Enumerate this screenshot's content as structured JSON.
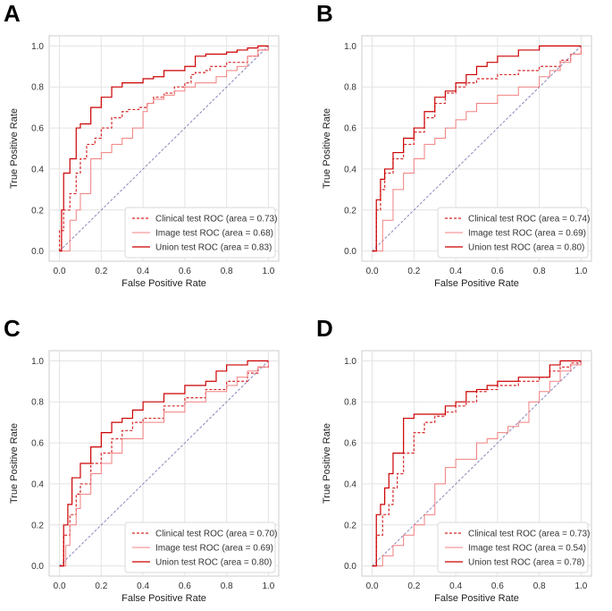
{
  "chart_data": [
    {
      "panel": "A",
      "type": "line",
      "xlabel": "False Positive Rate",
      "ylabel": "True Positive Rate",
      "xlim": [
        0,
        1
      ],
      "ylim": [
        0,
        1
      ],
      "xticks": [
        "0.0",
        "0.2",
        "0.4",
        "0.6",
        "0.8",
        "1.0"
      ],
      "yticks": [
        "0.0",
        "0.2",
        "0.4",
        "0.6",
        "0.8",
        "1.0"
      ],
      "grid": true,
      "legend_position": "lower-right",
      "series": [
        {
          "name": "Clinical test ROC (area = 0.73)",
          "color": "#d62728",
          "style": "dashed",
          "x": [
            0,
            0,
            0.02,
            0.05,
            0.08,
            0.1,
            0.13,
            0.17,
            0.2,
            0.25,
            0.3,
            0.33,
            0.38,
            0.42,
            0.45,
            0.5,
            0.55,
            0.6,
            0.63,
            0.65,
            0.7,
            0.72,
            0.8,
            0.9,
            0.95,
            1.0
          ],
          "y": [
            0,
            0.1,
            0.2,
            0.28,
            0.38,
            0.45,
            0.52,
            0.55,
            0.6,
            0.65,
            0.68,
            0.69,
            0.7,
            0.72,
            0.75,
            0.77,
            0.8,
            0.82,
            0.86,
            0.87,
            0.88,
            0.9,
            0.92,
            0.95,
            0.98,
            1.0
          ]
        },
        {
          "name": "Image test ROC (area = 0.68)",
          "color": "#f08080",
          "style": "solid",
          "x": [
            0,
            0.05,
            0.08,
            0.1,
            0.15,
            0.2,
            0.25,
            0.3,
            0.35,
            0.4,
            0.42,
            0.45,
            0.5,
            0.55,
            0.6,
            0.65,
            0.7,
            0.75,
            0.8,
            0.85,
            0.9,
            0.95,
            1.0
          ],
          "y": [
            0,
            0.15,
            0.2,
            0.28,
            0.45,
            0.48,
            0.52,
            0.55,
            0.6,
            0.68,
            0.72,
            0.74,
            0.76,
            0.78,
            0.8,
            0.82,
            0.82,
            0.85,
            0.88,
            0.9,
            0.95,
            0.98,
            1.0
          ]
        },
        {
          "name": "Union test ROC (area = 0.83)",
          "color": "#cc0000",
          "style": "solid",
          "x": [
            0,
            0.01,
            0.02,
            0.05,
            0.08,
            0.1,
            0.15,
            0.2,
            0.25,
            0.3,
            0.4,
            0.45,
            0.5,
            0.6,
            0.65,
            0.7,
            0.8,
            0.85,
            0.9,
            0.95,
            1.0
          ],
          "y": [
            0,
            0.2,
            0.38,
            0.45,
            0.6,
            0.62,
            0.7,
            0.75,
            0.8,
            0.82,
            0.84,
            0.85,
            0.88,
            0.9,
            0.95,
            0.96,
            0.97,
            0.98,
            0.99,
            1.0,
            1.0
          ]
        }
      ]
    },
    {
      "panel": "B",
      "type": "line",
      "xlabel": "False Positive Rate",
      "ylabel": "True Positive Rate",
      "xlim": [
        0,
        1
      ],
      "ylim": [
        0,
        1
      ],
      "xticks": [
        "0.0",
        "0.2",
        "0.4",
        "0.6",
        "0.8",
        "1.0"
      ],
      "yticks": [
        "0.0",
        "0.2",
        "0.4",
        "0.6",
        "0.8",
        "1.0"
      ],
      "grid": true,
      "legend_position": "lower-right",
      "series": [
        {
          "name": "Clinical test ROC (area = 0.74)",
          "color": "#d62728",
          "style": "dashed",
          "x": [
            0,
            0.02,
            0.04,
            0.06,
            0.1,
            0.15,
            0.2,
            0.25,
            0.3,
            0.35,
            0.4,
            0.45,
            0.5,
            0.6,
            0.7,
            0.8,
            0.9,
            0.95,
            1.0
          ],
          "y": [
            0,
            0.2,
            0.3,
            0.38,
            0.45,
            0.52,
            0.58,
            0.65,
            0.72,
            0.77,
            0.8,
            0.82,
            0.84,
            0.86,
            0.88,
            0.9,
            0.93,
            0.96,
            1.0
          ]
        },
        {
          "name": "Image test ROC (area = 0.69)",
          "color": "#f08080",
          "style": "solid",
          "x": [
            0,
            0.05,
            0.1,
            0.15,
            0.2,
            0.25,
            0.3,
            0.35,
            0.4,
            0.45,
            0.5,
            0.6,
            0.7,
            0.8,
            0.85,
            0.9,
            0.95,
            1.0
          ],
          "y": [
            0,
            0.15,
            0.3,
            0.38,
            0.45,
            0.52,
            0.55,
            0.6,
            0.64,
            0.68,
            0.72,
            0.76,
            0.8,
            0.85,
            0.88,
            0.92,
            0.96,
            1.0
          ]
        },
        {
          "name": "Union test ROC (area = 0.80)",
          "color": "#cc0000",
          "style": "solid",
          "x": [
            0,
            0.02,
            0.04,
            0.06,
            0.1,
            0.15,
            0.2,
            0.25,
            0.3,
            0.35,
            0.4,
            0.45,
            0.5,
            0.55,
            0.6,
            0.7,
            0.8,
            0.9,
            1.0
          ],
          "y": [
            0,
            0.25,
            0.35,
            0.4,
            0.48,
            0.55,
            0.6,
            0.68,
            0.75,
            0.78,
            0.82,
            0.86,
            0.9,
            0.92,
            0.95,
            0.98,
            1.0,
            1.0,
            1.0
          ]
        }
      ]
    },
    {
      "panel": "C",
      "type": "line",
      "xlabel": "False Positive Rate",
      "ylabel": "True Positive Rate",
      "xlim": [
        0,
        1
      ],
      "ylim": [
        0,
        1
      ],
      "xticks": [
        "0.0",
        "0.2",
        "0.4",
        "0.6",
        "0.8",
        "1.0"
      ],
      "yticks": [
        "0.0",
        "0.2",
        "0.4",
        "0.6",
        "0.8",
        "1.0"
      ],
      "grid": true,
      "legend_position": "lower-right",
      "series": [
        {
          "name": "Clinical test ROC (area = 0.70)",
          "color": "#d62728",
          "style": "dashed",
          "x": [
            0,
            0.02,
            0.05,
            0.08,
            0.1,
            0.15,
            0.2,
            0.25,
            0.3,
            0.35,
            0.4,
            0.5,
            0.6,
            0.7,
            0.8,
            0.9,
            0.95,
            1.0
          ],
          "y": [
            0,
            0.15,
            0.25,
            0.35,
            0.4,
            0.5,
            0.55,
            0.62,
            0.66,
            0.7,
            0.72,
            0.78,
            0.82,
            0.86,
            0.9,
            0.94,
            0.97,
            1.0
          ]
        },
        {
          "name": "Image test ROC (area = 0.69)",
          "color": "#f08080",
          "style": "solid",
          "x": [
            0,
            0.03,
            0.05,
            0.08,
            0.1,
            0.15,
            0.2,
            0.25,
            0.3,
            0.4,
            0.5,
            0.6,
            0.7,
            0.8,
            0.85,
            0.9,
            0.95,
            1.0
          ],
          "y": [
            0,
            0.1,
            0.2,
            0.28,
            0.35,
            0.45,
            0.5,
            0.55,
            0.62,
            0.7,
            0.75,
            0.8,
            0.85,
            0.88,
            0.92,
            0.95,
            0.97,
            1.0
          ]
        },
        {
          "name": "Union test ROC (area = 0.80)",
          "color": "#cc0000",
          "style": "solid",
          "x": [
            0,
            0.02,
            0.04,
            0.06,
            0.1,
            0.15,
            0.2,
            0.25,
            0.3,
            0.35,
            0.4,
            0.5,
            0.6,
            0.7,
            0.75,
            0.8,
            0.9,
            1.0
          ],
          "y": [
            0,
            0.2,
            0.3,
            0.43,
            0.5,
            0.58,
            0.65,
            0.7,
            0.72,
            0.76,
            0.8,
            0.84,
            0.88,
            0.9,
            0.95,
            0.98,
            1.0,
            1.0
          ]
        }
      ]
    },
    {
      "panel": "D",
      "type": "line",
      "xlabel": "False Positive Rate",
      "ylabel": "True Positive Rate",
      "xlim": [
        0,
        1
      ],
      "ylim": [
        0,
        1
      ],
      "xticks": [
        "0.0",
        "0.2",
        "0.4",
        "0.6",
        "0.8",
        "1.0"
      ],
      "yticks": [
        "0.0",
        "0.2",
        "0.4",
        "0.6",
        "0.8",
        "1.0"
      ],
      "grid": true,
      "legend_position": "lower-right",
      "series": [
        {
          "name": "Clinical test ROC (area = 0.73)",
          "color": "#d62728",
          "style": "dashed",
          "x": [
            0,
            0.02,
            0.05,
            0.08,
            0.1,
            0.12,
            0.15,
            0.2,
            0.25,
            0.3,
            0.35,
            0.4,
            0.45,
            0.5,
            0.55,
            0.6,
            0.7,
            0.8,
            0.85,
            0.9,
            0.95,
            1.0
          ],
          "y": [
            0,
            0.15,
            0.25,
            0.3,
            0.38,
            0.45,
            0.55,
            0.65,
            0.7,
            0.73,
            0.75,
            0.78,
            0.8,
            0.85,
            0.86,
            0.88,
            0.9,
            0.92,
            0.95,
            0.97,
            0.99,
            1.0
          ]
        },
        {
          "name": "Image test ROC (area = 0.54)",
          "color": "#f08080",
          "style": "solid",
          "x": [
            0,
            0.05,
            0.1,
            0.15,
            0.2,
            0.25,
            0.3,
            0.35,
            0.4,
            0.5,
            0.55,
            0.6,
            0.65,
            0.7,
            0.75,
            0.8,
            0.85,
            0.9,
            0.95,
            1.0
          ],
          "y": [
            0,
            0.05,
            0.1,
            0.15,
            0.2,
            0.25,
            0.4,
            0.48,
            0.52,
            0.6,
            0.62,
            0.65,
            0.68,
            0.7,
            0.8,
            0.85,
            0.9,
            0.95,
            0.98,
            1.0
          ]
        },
        {
          "name": "Union test ROC (area = 0.78)",
          "color": "#cc0000",
          "style": "solid",
          "x": [
            0,
            0.02,
            0.04,
            0.06,
            0.08,
            0.1,
            0.15,
            0.2,
            0.25,
            0.3,
            0.35,
            0.4,
            0.45,
            0.5,
            0.55,
            0.6,
            0.7,
            0.8,
            0.85,
            0.9,
            0.95,
            1.0
          ],
          "y": [
            0,
            0.25,
            0.3,
            0.38,
            0.45,
            0.55,
            0.72,
            0.74,
            0.74,
            0.74,
            0.78,
            0.8,
            0.85,
            0.86,
            0.88,
            0.9,
            0.92,
            0.92,
            0.98,
            1.0,
            1.0,
            1.0
          ]
        }
      ]
    }
  ]
}
